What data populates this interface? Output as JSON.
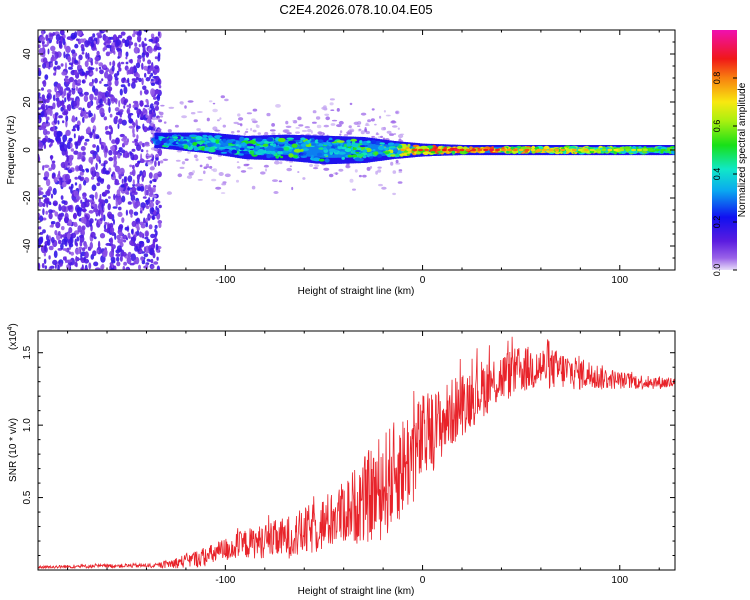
{
  "title": "C2E4.2026.078.10.04.E05",
  "chart_data": [
    {
      "type": "heatmap",
      "panel": "spectrogram",
      "xlabel": "Height of straight line (km)",
      "ylabel": "Frequency (Hz)",
      "xlim": [
        -195,
        128
      ],
      "ylim": [
        -50,
        50
      ],
      "xticks": [
        -100,
        0,
        100
      ],
      "yticks": [
        -40,
        -20,
        0,
        20,
        40
      ],
      "colorbar": {
        "label": "Normalized spectral amplitude",
        "range": [
          0,
          1
        ],
        "ticks": [
          "0.0",
          "0.2",
          "0.4",
          "0.6",
          "0.8"
        ],
        "colormap": "rainbow (violet to magenta)"
      },
      "noise_region": {
        "x_range": [
          -195,
          -133
        ],
        "y_range": [
          -50,
          50
        ],
        "amplitude": "0.1-0.3"
      },
      "sparse_region": {
        "x_range": [
          -133,
          -20
        ],
        "y_spread": 12,
        "amplitude": "<0.15"
      },
      "signal_band": [
        {
          "x": -135,
          "y": 4,
          "spread": 4,
          "amplitude": 0.45
        },
        {
          "x": -110,
          "y": 3,
          "spread": 6,
          "amplitude": 0.5
        },
        {
          "x": -90,
          "y": 1,
          "spread": 7,
          "amplitude": 0.5
        },
        {
          "x": -70,
          "y": 1,
          "spread": 8,
          "amplitude": 0.55
        },
        {
          "x": -50,
          "y": 0,
          "spread": 9,
          "amplitude": 0.55
        },
        {
          "x": -30,
          "y": 0,
          "spread": 8,
          "amplitude": 0.55
        },
        {
          "x": -15,
          "y": 0,
          "spread": 5,
          "amplitude": 0.65
        },
        {
          "x": 0,
          "y": 0,
          "spread": 3,
          "amplitude": 0.8
        },
        {
          "x": 20,
          "y": 0,
          "spread": 2,
          "amplitude": 0.85
        },
        {
          "x": 40,
          "y": 0,
          "spread": 2,
          "amplitude": 0.8
        },
        {
          "x": 70,
          "y": 0,
          "spread": 2,
          "amplitude": 0.7
        },
        {
          "x": 100,
          "y": 0,
          "spread": 2,
          "amplitude": 0.6
        },
        {
          "x": 128,
          "y": 0,
          "spread": 2,
          "amplitude": 0.55
        }
      ]
    },
    {
      "type": "line",
      "panel": "snr",
      "xlabel": "Height of straight line (km)",
      "ylabel": "SNR (10 * v/v)",
      "multiplier_label": "(x10",
      "multiplier_exp": "4",
      "xlim": [
        -195,
        128
      ],
      "ylim": [
        0,
        1.65
      ],
      "xticks": [
        -100,
        0,
        100
      ],
      "yticks": [
        0.5,
        1.0,
        1.5
      ],
      "ytick_labels": [
        "0.5",
        "1.0",
        "1.5"
      ],
      "color": "#e8232a",
      "envelope": {
        "x": [
          -195,
          -150,
          -135,
          -125,
          -110,
          -100,
          -90,
          -80,
          -70,
          -60,
          -50,
          -40,
          -30,
          -20,
          -15,
          -10,
          -5,
          0,
          10,
          20,
          30,
          40,
          50,
          60,
          70,
          80,
          90,
          100,
          110,
          128
        ],
        "y": [
          0.02,
          0.03,
          0.03,
          0.05,
          0.09,
          0.14,
          0.18,
          0.2,
          0.22,
          0.26,
          0.32,
          0.4,
          0.48,
          0.58,
          0.65,
          0.72,
          0.8,
          0.9,
          1.02,
          1.15,
          1.25,
          1.33,
          1.38,
          1.4,
          1.38,
          1.36,
          1.33,
          1.31,
          1.3,
          1.29
        ]
      },
      "noise_amplitude": {
        "x": [
          -195,
          -135,
          -120,
          -80,
          -40,
          -20,
          -5,
          10,
          40,
          80,
          100,
          128
        ],
        "y": [
          0.01,
          0.015,
          0.05,
          0.12,
          0.22,
          0.38,
          0.35,
          0.25,
          0.18,
          0.12,
          0.06,
          0.04
        ]
      }
    }
  ]
}
